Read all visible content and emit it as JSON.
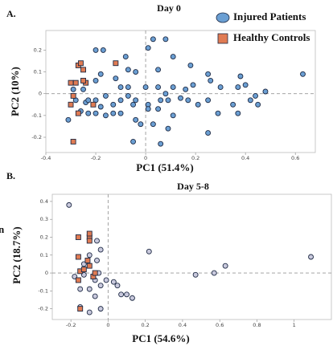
{
  "chart_data": [
    {
      "type": "scatter",
      "panel": "A.",
      "title": "Day 0",
      "xlabel": "PC1 (51.4%)",
      "ylabel": "PC2 (10%)",
      "xlim": [
        -0.4,
        0.68
      ],
      "ylim": [
        -0.27,
        0.29
      ],
      "xticks": [
        -0.4,
        -0.2,
        0,
        0.2,
        0.4,
        0.6
      ],
      "yticks": [
        -0.2,
        -0.1,
        0,
        0.1,
        0.2
      ],
      "zero_lines": true,
      "legend": "upper right",
      "series": [
        {
          "name": "Injured Patients",
          "color": "#6b9fd3",
          "marker": "circle",
          "x": [
            -0.2,
            -0.17,
            -0.08,
            0.03,
            0.08,
            0.01,
            0.11,
            0.05,
            0.18,
            0.25,
            0.38,
            0.4,
            0.48,
            0.63,
            -0.04,
            -0.07,
            -0.1,
            -0.12,
            -0.18,
            -0.2,
            -0.25,
            -0.29,
            -0.28,
            -0.26,
            -0.24,
            -0.2,
            -0.23,
            -0.18,
            -0.16,
            -0.13,
            -0.1,
            -0.07,
            -0.05,
            -0.04,
            -0.02,
            0.03,
            0.06,
            0.09,
            0.14,
            0.17,
            0.21,
            0.25,
            0.3,
            0.26,
            0.19,
            0.16,
            0.11,
            0.08,
            0.05,
            0.01,
            0,
            -0.07,
            -0.1,
            -0.13,
            -0.16,
            -0.2,
            -0.31,
            -0.23,
            -0.25,
            0.29,
            0.37,
            0.42,
            0.44,
            0.45,
            0.35,
            0.25,
            0.11,
            0.09,
            0.06,
            -0.05,
            0.05,
            0.01,
            -0.04,
            0.37
          ],
          "y": [
            0.2,
            0.2,
            0.17,
            0.25,
            0.25,
            0.21,
            0.17,
            0.11,
            0.13,
            0.09,
            0.08,
            0.04,
            0.01,
            0.09,
            0.1,
            0.11,
            0.03,
            0.07,
            0.09,
            0.06,
            0.06,
            0.02,
            -0.03,
            -0.08,
            -0.04,
            -0.03,
            -0.09,
            -0.06,
            -0.01,
            -0.05,
            -0.03,
            -0.01,
            -0.05,
            -0.12,
            -0.14,
            -0.14,
            -0.03,
            -0.03,
            -0.02,
            -0.03,
            -0.05,
            -0.03,
            0.03,
            0.06,
            0.04,
            0.02,
            0.03,
            0,
            0.03,
            -0.05,
            0.03,
            0.03,
            -0.09,
            -0.09,
            -0.1,
            -0.09,
            -0.12,
            -0.03,
            0.02,
            -0.09,
            -0.09,
            -0.03,
            -0.01,
            -0.05,
            -0.05,
            -0.18,
            -0.1,
            -0.16,
            -0.23,
            -0.22,
            -0.07,
            -0.07,
            -0.03,
            0.03
          ]
        },
        {
          "name": "Healthy Controls",
          "color": "#e07b53",
          "marker": "square",
          "x": [
            -0.3,
            -0.28,
            -0.27,
            -0.25,
            -0.24,
            -0.26,
            -0.25,
            -0.29,
            -0.3,
            -0.27,
            -0.29,
            -0.12,
            -0.21
          ],
          "y": [
            0.05,
            0.05,
            0.13,
            0.11,
            0.05,
            0.14,
            0.06,
            -0.01,
            -0.05,
            -0.09,
            -0.22,
            0.14,
            -0.05
          ]
        }
      ]
    },
    {
      "type": "scatter",
      "panel": "B.",
      "title": "Day 5-8",
      "xlabel": "PC1 (54.6%)",
      "ylabel": "PC2 (18.7%)",
      "annotation": "n",
      "xlim": [
        -0.3,
        1.2
      ],
      "ylim": [
        -0.26,
        0.44
      ],
      "xticks": [
        -0.2,
        0,
        0.2,
        0.4,
        0.6,
        0.8,
        1
      ],
      "yticks": [
        -0.2,
        -0.1,
        0,
        0.1,
        0.2,
        0.3,
        0.4
      ],
      "zero_lines": true,
      "series": [
        {
          "color": "#c9c9dd",
          "marker": "circle",
          "x": [
            -0.21,
            0.22,
            0.47,
            0.57,
            0.63,
            1.09,
            -0.04,
            -0.06,
            -0.13,
            -0.18,
            -0.07,
            -0.1,
            -0.15,
            -0.04,
            -0.07,
            -0.15,
            -0.1,
            -0.04,
            -0.01,
            0.03,
            0.05,
            0.07,
            0.1,
            0.13,
            -0.05,
            -0.13,
            -0.1,
            -0.06
          ],
          "y": [
            0.38,
            0.12,
            -0.01,
            0,
            0.04,
            0.09,
            0.13,
            0.07,
            -0.01,
            -0.02,
            -0.04,
            -0.09,
            -0.09,
            -0.07,
            -0.13,
            -0.19,
            -0.22,
            -0.2,
            -0.04,
            -0.05,
            -0.07,
            -0.12,
            -0.12,
            -0.14,
            0,
            0.05,
            0.1,
            0.18
          ]
        },
        {
          "color": "#e07b53",
          "marker": "square",
          "x": [
            -0.16,
            -0.1,
            -0.1,
            -0.16,
            -0.15,
            -0.16,
            -0.13,
            -0.1,
            -0.08,
            -0.15,
            -0.1,
            -0.11,
            -0.07
          ],
          "y": [
            0.2,
            0.2,
            0.22,
            0.09,
            0.01,
            -0.04,
            0.02,
            0.04,
            -0.02,
            -0.2,
            0.18,
            0.07,
            0
          ]
        }
      ]
    }
  ]
}
